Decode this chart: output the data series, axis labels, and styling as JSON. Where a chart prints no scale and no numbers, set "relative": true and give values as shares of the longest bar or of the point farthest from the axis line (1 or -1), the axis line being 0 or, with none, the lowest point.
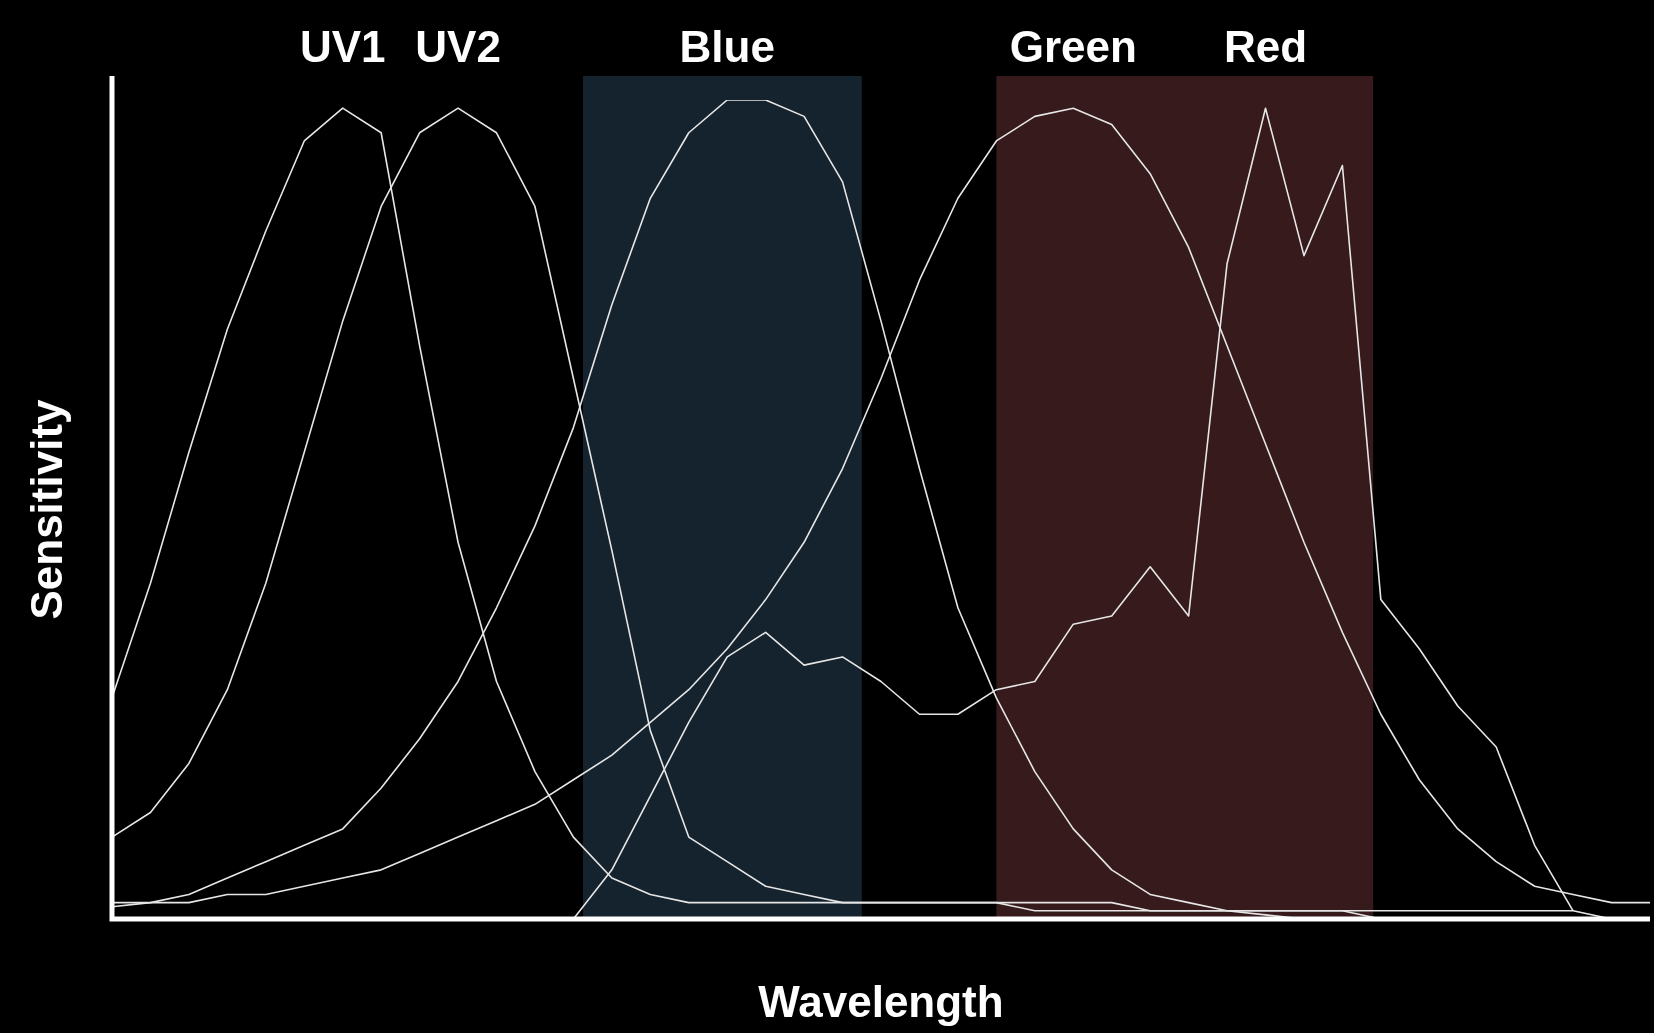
{
  "chart_data": {
    "type": "line",
    "relative": true,
    "xlabel": "Wavelength",
    "ylabel": "Sensitivity",
    "legend": false,
    "tick_labels": false,
    "marker": "none",
    "line_style": "solid",
    "categories": [
      null,
      null,
      null,
      null,
      null,
      null,
      null,
      null,
      null,
      null,
      null,
      null,
      null,
      null,
      null,
      null,
      null,
      null,
      null,
      null,
      null,
      null,
      null,
      null,
      null,
      null,
      null,
      null,
      null,
      null,
      null,
      null,
      null,
      null,
      null,
      null,
      null,
      null,
      null,
      null,
      null
    ],
    "series": [
      {
        "name": "UV1",
        "color": "#e6e6e6",
        "values": [
          0.27,
          0.41,
          0.57,
          0.72,
          0.84,
          0.95,
          0.99,
          0.96,
          0.7,
          0.46,
          0.29,
          0.18,
          0.1,
          0.05,
          0.03,
          0.02,
          0.02,
          0.02,
          0.02,
          0.02,
          0.02,
          0.02,
          0.02,
          0.02,
          0.02,
          0.02,
          0.02,
          0.01,
          0.01,
          0.01,
          0.01,
          0.01,
          0.01,
          0.01,
          0.01,
          0.01,
          0.01,
          0.01,
          0.01,
          0,
          0
        ]
      },
      {
        "name": "UV2",
        "color": "#e6e6e6",
        "values": [
          0.1,
          0.13,
          0.19,
          0.28,
          0.41,
          0.57,
          0.73,
          0.87,
          0.96,
          0.99,
          0.96,
          0.87,
          0.66,
          0.45,
          0.23,
          0.1,
          0.07,
          0.04,
          0.03,
          0.02,
          0.02,
          0.02,
          0.02,
          0.02,
          0.01,
          0.01,
          0.01,
          0.01,
          0.01,
          0.01,
          0.01,
          0.01,
          0.01,
          0,
          0,
          0,
          0,
          0,
          0,
          0,
          0
        ]
      },
      {
        "name": "Blue",
        "color": "#e6e6e6",
        "values": [
          0.015,
          0.02,
          0.03,
          0.05,
          0.07,
          0.09,
          0.11,
          0.16,
          0.22,
          0.29,
          0.38,
          0.48,
          0.6,
          0.75,
          0.88,
          0.96,
          1,
          1,
          0.98,
          0.9,
          0.73,
          0.55,
          0.38,
          0.27,
          0.18,
          0.11,
          0.06,
          0.03,
          0.02,
          0.01,
          0.005,
          0,
          0,
          0,
          0,
          0,
          0,
          0,
          0,
          0,
          0
        ]
      },
      {
        "name": "Green",
        "color": "#e6e6e6",
        "values": [
          0.02,
          0.02,
          0.02,
          0.03,
          0.03,
          0.04,
          0.05,
          0.06,
          0.08,
          0.1,
          0.12,
          0.14,
          0.17,
          0.2,
          0.24,
          0.28,
          0.33,
          0.39,
          0.46,
          0.55,
          0.66,
          0.78,
          0.88,
          0.95,
          0.98,
          0.99,
          0.97,
          0.91,
          0.82,
          0.7,
          0.58,
          0.46,
          0.35,
          0.25,
          0.17,
          0.11,
          0.07,
          0.04,
          0.03,
          0.02,
          0.02
        ]
      },
      {
        "name": "Red",
        "color": "#e6e6e6",
        "values": [
          null,
          null,
          null,
          null,
          null,
          null,
          null,
          null,
          null,
          null,
          null,
          null,
          0,
          0.06,
          0.15,
          0.24,
          0.32,
          0.35,
          0.31,
          0.32,
          0.29,
          0.25,
          0.25,
          0.28,
          0.29,
          0.36,
          0.37,
          0.43,
          0.37,
          0.8,
          0.99,
          0.81,
          0.92,
          0.39,
          0.33,
          0.26,
          0.21,
          0.09,
          0.01,
          null,
          null
        ]
      }
    ]
  }
}
